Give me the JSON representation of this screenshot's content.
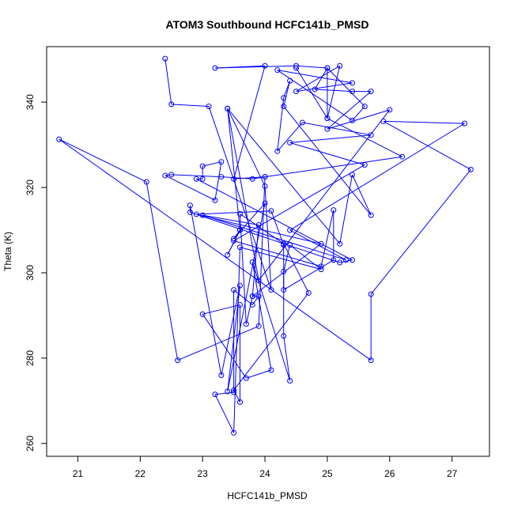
{
  "chart_data": {
    "type": "line",
    "title": "ATOM3 Southbound HCFC141b_PMSD",
    "xlabel": "HCFC141b_PMSD",
    "ylabel": "Theta (K)",
    "xlim": [
      20.5,
      27.6
    ],
    "ylim": [
      257,
      353
    ],
    "x_ticks": [
      21,
      22,
      23,
      24,
      25,
      26,
      27
    ],
    "y_ticks": [
      260,
      280,
      300,
      320,
      340
    ],
    "grid": false,
    "legend": "none",
    "series_color": "#0000ff",
    "marker": "open-circle",
    "series": [
      {
        "points": [
          [
            22.4,
            350.2
          ],
          [
            22.5,
            339.5
          ],
          [
            23.1,
            339.0
          ],
          [
            24.1,
            296.0
          ],
          [
            24.0,
            320.3
          ],
          [
            23.4,
            338.5
          ],
          [
            23.6,
            310.0
          ],
          [
            23.4,
            304.2
          ],
          [
            23.6,
            310.0
          ],
          [
            23.5,
            308.0
          ],
          [
            24.0,
            316.3
          ],
          [
            23.4,
            272.2
          ],
          [
            23.6,
            297.0
          ],
          [
            23.3,
            276.0
          ],
          [
            22.8,
            315.8
          ],
          [
            22.8,
            314.2
          ],
          [
            25.2,
            302.4
          ],
          [
            25.4,
            303.0
          ],
          [
            22.9,
            322.0
          ],
          [
            23.0,
            322.0
          ],
          [
            23.0,
            325.0
          ],
          [
            23.3,
            326.0
          ],
          [
            23.2,
            317.0
          ],
          [
            22.4,
            322.8
          ],
          [
            22.5,
            323.0
          ],
          [
            23.3,
            322.5
          ],
          [
            23.8,
            322.0
          ],
          [
            24.0,
            322.5
          ],
          [
            23.5,
            322.0
          ],
          [
            24.0,
            348.5
          ],
          [
            23.2,
            348.0
          ],
          [
            24.5,
            348.5
          ],
          [
            25.0,
            348.0
          ],
          [
            25.0,
            336.2
          ],
          [
            25.2,
            348.5
          ],
          [
            24.5,
            342.5
          ],
          [
            25.4,
            344.5
          ],
          [
            24.2,
            347.5
          ],
          [
            25.4,
            335.7
          ],
          [
            25.6,
            339.0
          ],
          [
            25.0,
            348.0
          ],
          [
            24.8,
            343.0
          ],
          [
            25.4,
            342.5
          ],
          [
            25.7,
            342.5
          ],
          [
            25.0,
            333.7
          ],
          [
            26.0,
            338.2
          ],
          [
            23.9,
            298.2
          ],
          [
            23.4,
            338.5
          ],
          [
            25.2,
            306.8
          ],
          [
            25.4,
            323.0
          ],
          [
            25.7,
            313.5
          ],
          [
            24.3,
            339.0
          ],
          [
            24.4,
            345.0
          ],
          [
            24.3,
            341.0
          ],
          [
            24.2,
            328.5
          ],
          [
            24.6,
            335.2
          ],
          [
            25.7,
            332.3
          ],
          [
            24.4,
            330.5
          ],
          [
            25.6,
            325.3
          ],
          [
            23.5,
            307.5
          ],
          [
            24.9,
            301.5
          ],
          [
            25.1,
            314.7
          ],
          [
            25.1,
            303.0
          ],
          [
            24.3,
            296.0
          ],
          [
            24.3,
            306.5
          ],
          [
            24.1,
            314.5
          ],
          [
            22.9,
            313.7
          ],
          [
            24.9,
            306.8
          ],
          [
            23.8,
            294.5
          ],
          [
            23.9,
            294.5
          ],
          [
            23.8,
            292.5
          ],
          [
            23.5,
            296.0
          ],
          [
            23.5,
            272.0
          ],
          [
            23.2,
            271.5
          ],
          [
            23.5,
            262.5
          ],
          [
            23.6,
            306.0
          ],
          [
            24.9,
            300.8
          ],
          [
            24.4,
            306.5
          ],
          [
            24.3,
            300.3
          ],
          [
            24.3,
            285.2
          ],
          [
            24.4,
            274.7
          ],
          [
            23.8,
            302.5
          ],
          [
            24.1,
            277.2
          ],
          [
            23.7,
            275.3
          ],
          [
            23.0,
            290.3
          ],
          [
            23.6,
            292.5
          ],
          [
            23.6,
            269.7
          ],
          [
            23.5,
            272.5
          ],
          [
            24.7,
            295.3
          ],
          [
            24.3,
            306.8
          ],
          [
            23.6,
            313.8
          ],
          [
            23.7,
            288.0
          ],
          [
            23.8,
            294.5
          ],
          [
            23.9,
            311.2
          ],
          [
            23.0,
            313.5
          ],
          [
            25.3,
            303.0
          ],
          [
            24.4,
            310.0
          ],
          [
            27.2,
            335.0
          ],
          [
            25.9,
            335.5
          ],
          [
            27.3,
            324.2
          ],
          [
            25.7,
            295.0
          ],
          [
            25.7,
            279.5
          ],
          [
            20.7,
            331.3
          ],
          [
            22.1,
            321.3
          ],
          [
            22.6,
            279.5
          ],
          [
            23.9,
            287.5
          ],
          [
            24.0,
            322.5
          ],
          [
            26.2,
            327.2
          ],
          [
            25.0,
            336.2
          ],
          [
            24.5,
            348.0
          ]
        ]
      }
    ]
  }
}
